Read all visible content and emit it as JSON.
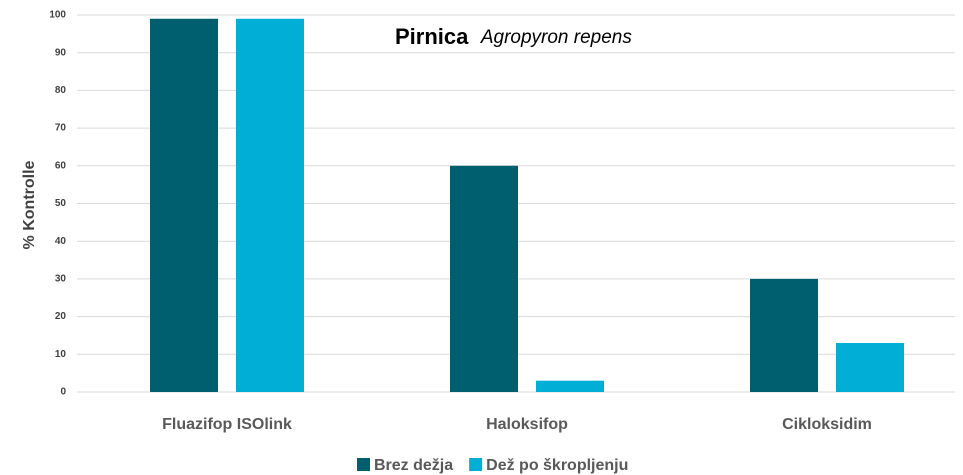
{
  "chart_data": {
    "type": "bar",
    "title": "Pirnica",
    "subtitle": "Agropyron repens",
    "y_label": "% Kontrolle",
    "categories": [
      "Fluazifop ISOlink",
      "Haloksifop",
      "Cikloksidim"
    ],
    "series": [
      {
        "name": "Brez dežja",
        "color": "#005f6e",
        "values": [
          99,
          60,
          30
        ]
      },
      {
        "name": "Dež po škropljenju",
        "color": "#00aed6",
        "values": [
          99,
          3,
          13
        ]
      }
    ],
    "ylim": [
      0,
      100
    ],
    "yticks": [
      0,
      10,
      20,
      30,
      40,
      50,
      60,
      70,
      80,
      90,
      100
    ],
    "grid": true,
    "legend": "bottom"
  }
}
